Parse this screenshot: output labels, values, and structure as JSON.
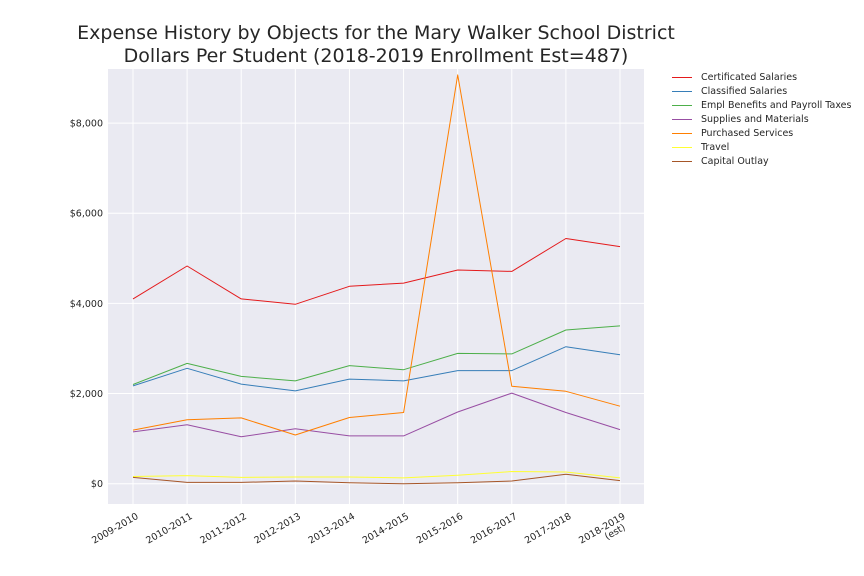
{
  "chart_data": {
    "type": "line",
    "title_line1": "Expense History by Objects for the Mary Walker School District",
    "title_line2": "Dollars Per Student (2018-2019 Enrollment Est=487)",
    "xlabel": "",
    "ylabel": "",
    "categories": [
      "2009-2010",
      "2010-2011",
      "2011-2012",
      "2012-2013",
      "2013-2014",
      "2014-2015",
      "2015-2016",
      "2016-2017",
      "2017-2018",
      "2018-2019"
    ],
    "category_sublabels": [
      "",
      "",
      "",
      "",
      "",
      "",
      "",
      "",
      "",
      "(est)"
    ],
    "ylim": [
      -450,
      9200
    ],
    "yticks": [
      0,
      2000,
      4000,
      6000,
      8000
    ],
    "ytick_labels": [
      "$0",
      "$2,000",
      "$4,000",
      "$6,000",
      "$8,000"
    ],
    "grid": true,
    "legend_position": "outside-top-right",
    "series": [
      {
        "name": "Certificated Salaries",
        "color": "#e41a1c",
        "values": [
          4100,
          4830,
          4100,
          3980,
          4380,
          4450,
          4740,
          4710,
          5440,
          5260
        ]
      },
      {
        "name": "Classified Salaries",
        "color": "#377eb8",
        "values": [
          2170,
          2560,
          2210,
          2060,
          2320,
          2280,
          2510,
          2510,
          3040,
          2860
        ]
      },
      {
        "name": "Empl Benefits and Payroll Taxes",
        "color": "#4daf4a",
        "values": [
          2200,
          2670,
          2380,
          2280,
          2620,
          2530,
          2890,
          2880,
          3410,
          3500
        ]
      },
      {
        "name": "Supplies and Materials",
        "color": "#984ea3",
        "values": [
          1150,
          1310,
          1040,
          1220,
          1060,
          1060,
          1590,
          2010,
          1580,
          1200
        ]
      },
      {
        "name": "Purchased Services",
        "color": "#ff7f00",
        "values": [
          1190,
          1420,
          1460,
          1080,
          1470,
          1580,
          9070,
          2160,
          2050,
          1720
        ]
      },
      {
        "name": "Travel",
        "color": "#ffff33",
        "values": [
          160,
          180,
          140,
          150,
          150,
          130,
          190,
          270,
          260,
          130
        ]
      },
      {
        "name": "Capital Outlay",
        "color": "#a65628",
        "values": [
          140,
          30,
          30,
          60,
          20,
          0,
          20,
          60,
          210,
          70
        ]
      }
    ]
  }
}
